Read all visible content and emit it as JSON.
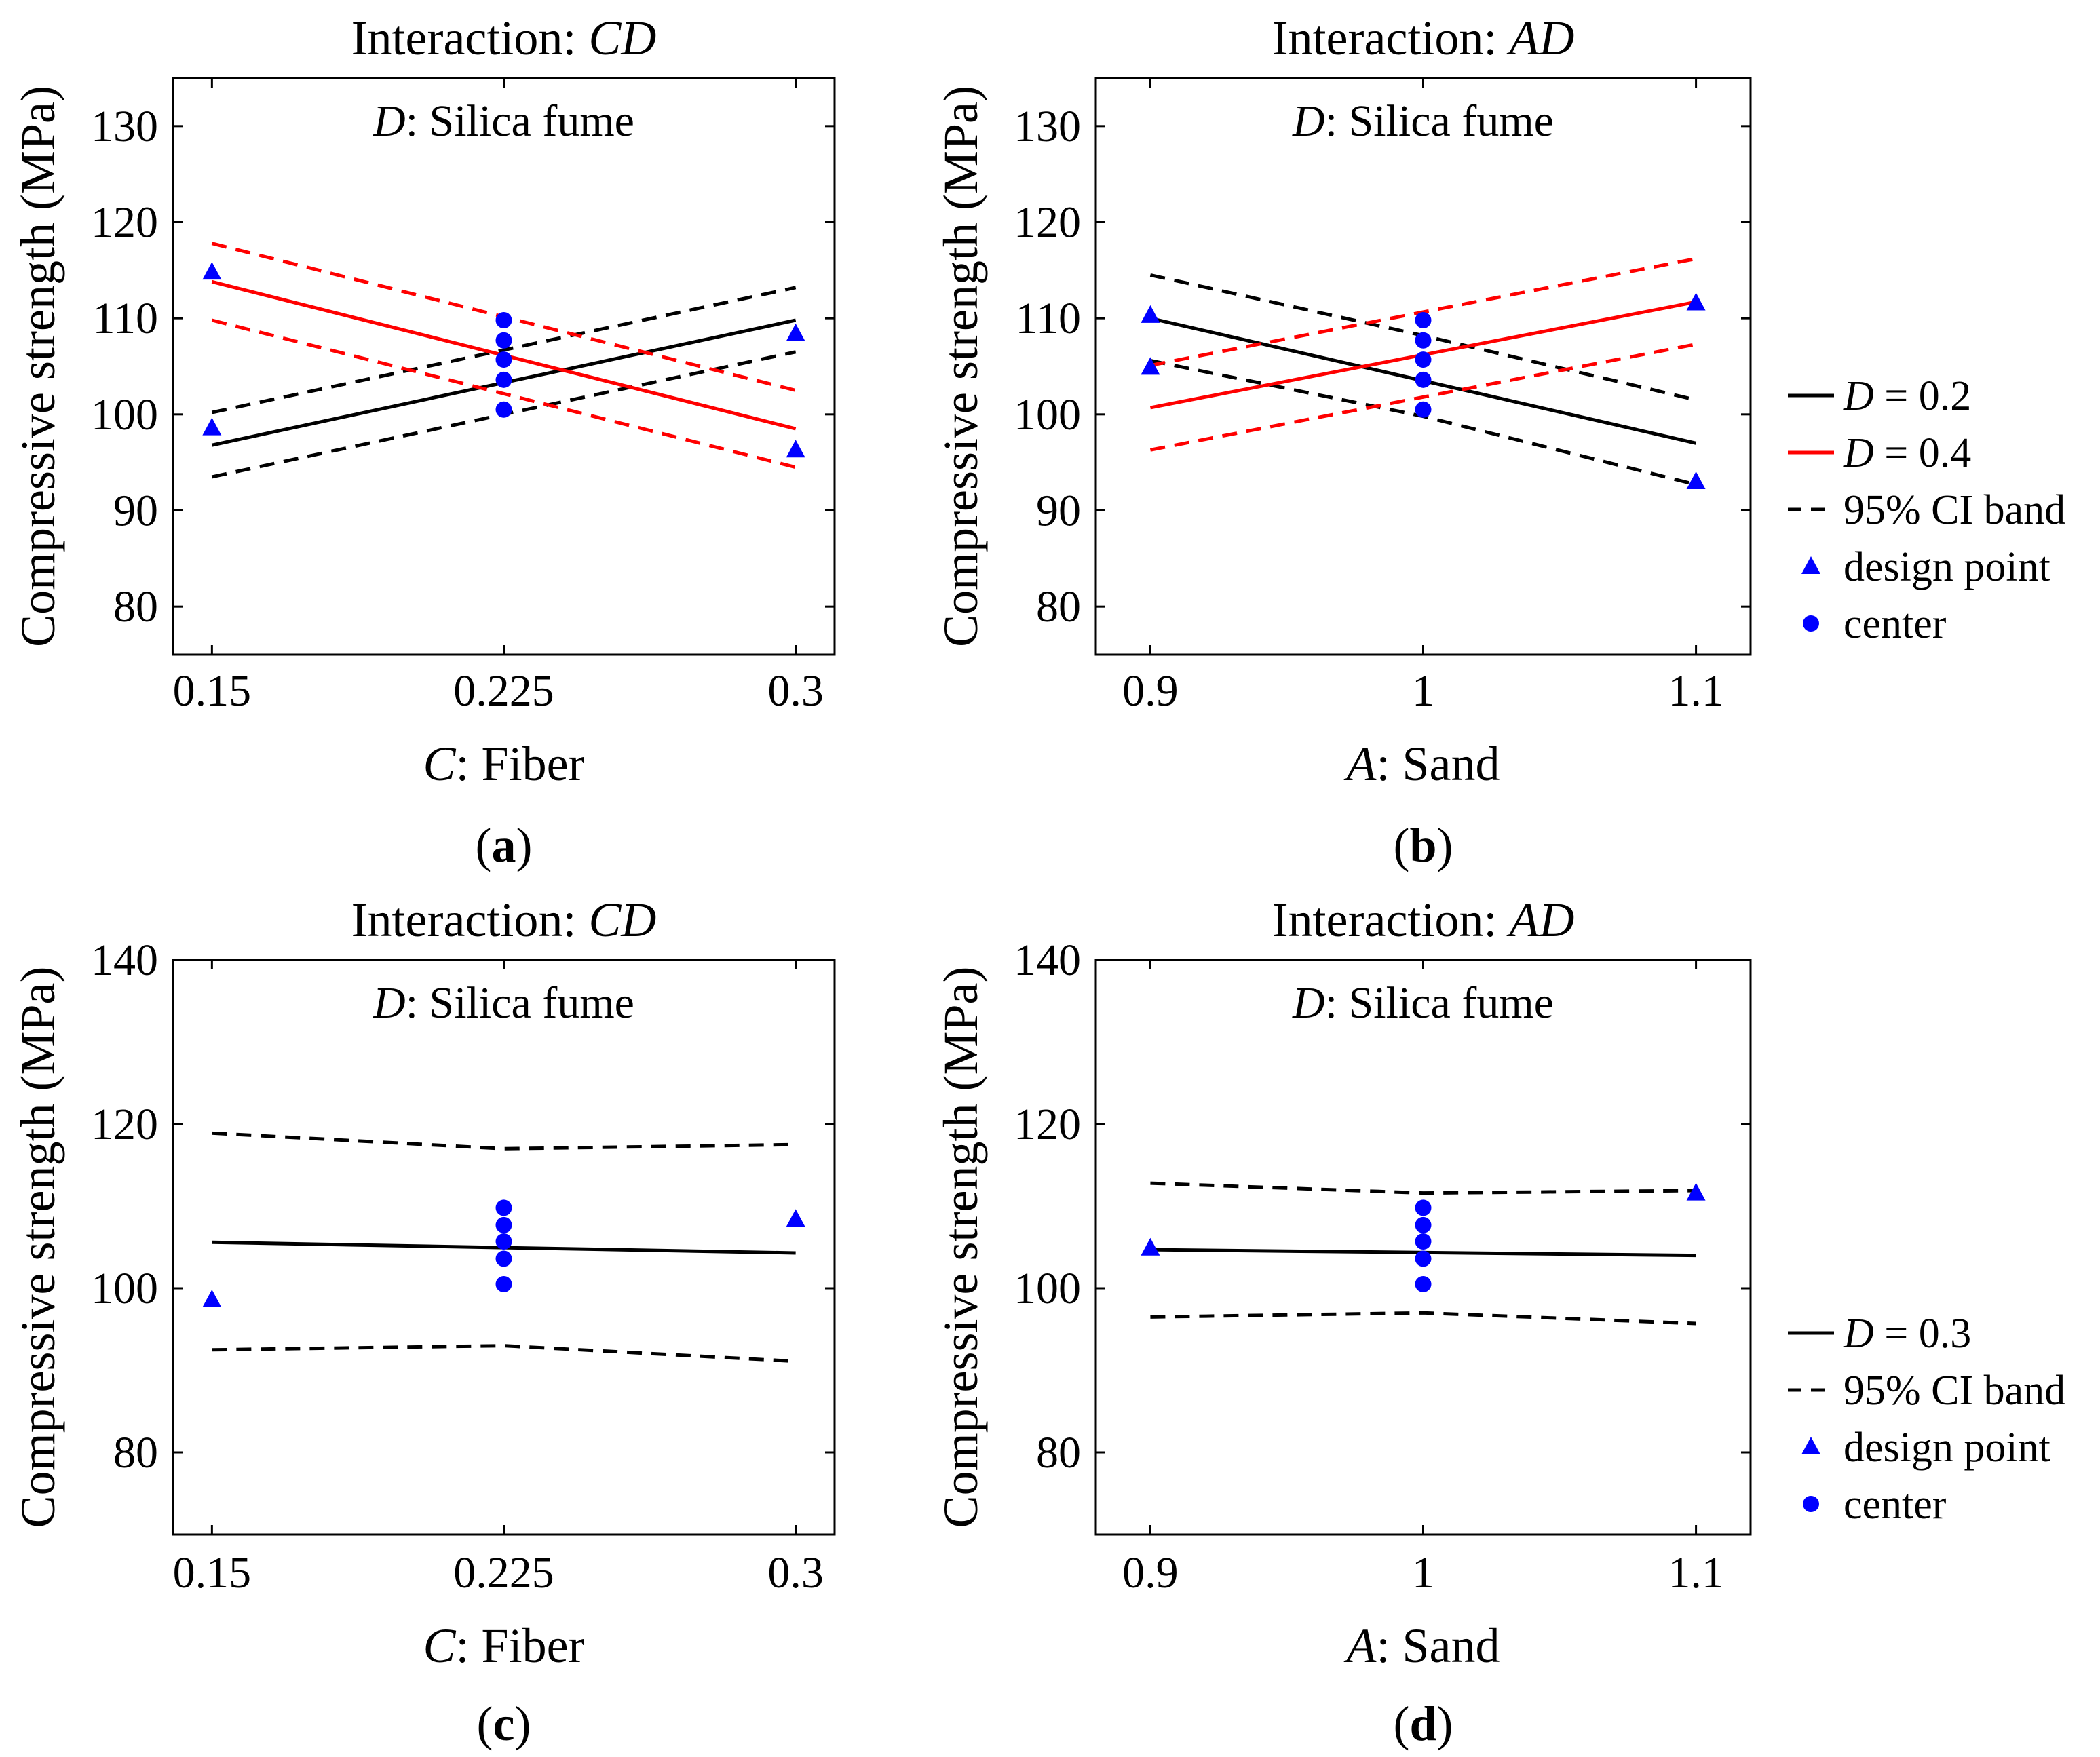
{
  "chart_data": [
    {
      "type": "line",
      "panel_label": "(a)",
      "title": "Interaction: CD",
      "title_parts": {
        "prefix": "Interaction: ",
        "italic": "CD"
      },
      "xlabel_parts": {
        "italic": "C",
        "rest": ": Fiber"
      },
      "ylabel": "Compressive strength (MPa)",
      "annotation_parts": {
        "italic": "D",
        "rest": ": Silica fume"
      },
      "xlim": [
        0.14,
        0.31
      ],
      "ylim": [
        75,
        135
      ],
      "xticks": [
        0.15,
        0.225,
        0.3
      ],
      "xtick_labels": [
        "0.15",
        "0.225",
        "0.3"
      ],
      "yticks": [
        80,
        90,
        100,
        110,
        120,
        130
      ],
      "series": [
        {
          "name": "D = 0.2",
          "style": "solid",
          "color": "#000000",
          "x": [
            0.15,
            0.3
          ],
          "y": [
            96.8,
            109.8
          ]
        },
        {
          "name": "D = 0.2 upper CI",
          "style": "dashed",
          "color": "#000000",
          "x": [
            0.15,
            0.3
          ],
          "y": [
            100.2,
            113.2
          ]
        },
        {
          "name": "D = 0.2 lower CI",
          "style": "dashed",
          "color": "#000000",
          "x": [
            0.15,
            0.3
          ],
          "y": [
            93.5,
            106.5
          ]
        },
        {
          "name": "D = 0.4",
          "style": "solid",
          "color": "#ff0000",
          "x": [
            0.15,
            0.3
          ],
          "y": [
            113.8,
            98.5
          ]
        },
        {
          "name": "D = 0.4 upper CI",
          "style": "dashed",
          "color": "#ff0000",
          "x": [
            0.15,
            0.3
          ],
          "y": [
            117.8,
            102.5
          ]
        },
        {
          "name": "D = 0.4 lower CI",
          "style": "dashed",
          "color": "#ff0000",
          "x": [
            0.15,
            0.3
          ],
          "y": [
            109.8,
            94.5
          ]
        }
      ],
      "design_points": {
        "x": [
          0.15,
          0.15,
          0.3,
          0.3
        ],
        "y": [
          114.8,
          98.6,
          108.4,
          96.3
        ]
      },
      "center_points": {
        "x": [
          0.225,
          0.225,
          0.225,
          0.225,
          0.225
        ],
        "y": [
          109.8,
          107.7,
          105.7,
          103.6,
          100.5
        ]
      }
    },
    {
      "type": "line",
      "panel_label": "(b)",
      "title": "Interaction: AD",
      "title_parts": {
        "prefix": "Interaction: ",
        "italic": "AD"
      },
      "xlabel_parts": {
        "italic": "A",
        "rest": ": Sand"
      },
      "ylabel": "Compressive strength (MPa)",
      "annotation_parts": {
        "italic": "D",
        "rest": ": Silica fume"
      },
      "xlim": [
        0.88,
        1.12
      ],
      "ylim": [
        75,
        135
      ],
      "xticks": [
        0.9,
        1.0,
        1.1
      ],
      "xtick_labels": [
        "0.9",
        "1",
        "1.1"
      ],
      "yticks": [
        80,
        90,
        100,
        110,
        120,
        130
      ],
      "series": [
        {
          "name": "D = 0.2",
          "style": "solid",
          "color": "#000000",
          "x": [
            0.9,
            1.1
          ],
          "y": [
            110.0,
            97.0
          ]
        },
        {
          "name": "D = 0.2 upper CI",
          "style": "dashed",
          "color": "#000000",
          "x": [
            0.9,
            1.0,
            1.1
          ],
          "y": [
            114.5,
            108.2,
            101.5
          ]
        },
        {
          "name": "D = 0.2 lower CI",
          "style": "dashed",
          "color": "#000000",
          "x": [
            0.9,
            1.0,
            1.1
          ],
          "y": [
            105.6,
            99.8,
            92.7
          ]
        },
        {
          "name": "D = 0.4",
          "style": "solid",
          "color": "#ff0000",
          "x": [
            0.9,
            1.1
          ],
          "y": [
            100.7,
            111.7
          ]
        },
        {
          "name": "D = 0.4 upper CI",
          "style": "dashed",
          "color": "#ff0000",
          "x": [
            0.9,
            1.1
          ],
          "y": [
            105.1,
            116.2
          ]
        },
        {
          "name": "D = 0.4 lower CI",
          "style": "dashed",
          "color": "#ff0000",
          "x": [
            0.9,
            1.1
          ],
          "y": [
            96.3,
            107.3
          ]
        }
      ],
      "design_points": {
        "x": [
          0.9,
          0.9,
          1.1,
          1.1
        ],
        "y": [
          110.3,
          104.9,
          111.6,
          93.0
        ]
      },
      "center_points": {
        "x": [
          1.0,
          1.0,
          1.0,
          1.0,
          1.0
        ],
        "y": [
          109.8,
          107.7,
          105.7,
          103.6,
          100.5
        ]
      }
    },
    {
      "type": "line",
      "panel_label": "(c)",
      "title": "Interaction: CD",
      "title_parts": {
        "prefix": "Interaction: ",
        "italic": "CD"
      },
      "xlabel_parts": {
        "italic": "C",
        "rest": ": Fiber"
      },
      "ylabel": "Compressive strength (MPa)",
      "annotation_parts": {
        "italic": "D",
        "rest": ": Silica fume"
      },
      "xlim": [
        0.14,
        0.31
      ],
      "ylim": [
        70,
        140
      ],
      "xticks": [
        0.15,
        0.225,
        0.3
      ],
      "xtick_labels": [
        "0.15",
        "0.225",
        "0.3"
      ],
      "yticks": [
        80,
        100,
        120,
        140
      ],
      "series": [
        {
          "name": "D = 0.3",
          "style": "solid",
          "color": "#000000",
          "x": [
            0.15,
            0.3
          ],
          "y": [
            105.6,
            104.3
          ]
        },
        {
          "name": "upper CI",
          "style": "dashed",
          "color": "#000000",
          "x": [
            0.15,
            0.225,
            0.3
          ],
          "y": [
            118.9,
            117.0,
            117.5
          ]
        },
        {
          "name": "lower CI",
          "style": "dashed",
          "color": "#000000",
          "x": [
            0.15,
            0.225,
            0.3
          ],
          "y": [
            92.5,
            93.0,
            91.1
          ]
        }
      ],
      "design_points": {
        "x": [
          0.15,
          0.3
        ],
        "y": [
          98.6,
          108.4
        ]
      },
      "center_points": {
        "x": [
          0.225,
          0.225,
          0.225,
          0.225,
          0.225
        ],
        "y": [
          109.8,
          107.7,
          105.7,
          103.6,
          100.5
        ]
      }
    },
    {
      "type": "line",
      "panel_label": "(d)",
      "title": "Interaction: AD",
      "title_parts": {
        "prefix": "Interaction: ",
        "italic": "AD"
      },
      "xlabel_parts": {
        "italic": "A",
        "rest": ": Sand"
      },
      "ylabel": "Compressive strength (MPa)",
      "annotation_parts": {
        "italic": "D",
        "rest": ": Silica fume"
      },
      "xlim": [
        0.88,
        1.12
      ],
      "ylim": [
        70,
        140
      ],
      "xticks": [
        0.9,
        1.0,
        1.1
      ],
      "xtick_labels": [
        "0.9",
        "1",
        "1.1"
      ],
      "yticks": [
        80,
        100,
        120,
        140
      ],
      "series": [
        {
          "name": "D = 0.3",
          "style": "solid",
          "color": "#000000",
          "x": [
            0.9,
            1.1
          ],
          "y": [
            104.7,
            104.0
          ]
        },
        {
          "name": "upper CI",
          "style": "dashed",
          "color": "#000000",
          "x": [
            0.9,
            1.0,
            1.1
          ],
          "y": [
            112.8,
            111.6,
            111.9
          ]
        },
        {
          "name": "lower CI",
          "style": "dashed",
          "color": "#000000",
          "x": [
            0.9,
            1.0,
            1.1
          ],
          "y": [
            96.5,
            97.0,
            95.7
          ]
        }
      ],
      "design_points": {
        "x": [
          0.9,
          1.1
        ],
        "y": [
          104.9,
          111.6
        ]
      },
      "center_points": {
        "x": [
          1.0,
          1.0,
          1.0,
          1.0,
          1.0
        ],
        "y": [
          109.8,
          107.7,
          105.7,
          103.6,
          100.5
        ]
      }
    }
  ],
  "legends": [
    {
      "entries": [
        {
          "kind": "line",
          "dash": "solid",
          "color": "#000000",
          "italic": "D",
          "rest": " = 0.2"
        },
        {
          "kind": "line",
          "dash": "solid",
          "color": "#ff0000",
          "italic": "D",
          "rest": " = 0.4"
        },
        {
          "kind": "line",
          "dash": "dashed",
          "color": "#000000",
          "italic": "",
          "rest": "95% CI band"
        },
        {
          "kind": "triangle",
          "color": "#0000ff",
          "italic": "",
          "rest": "design point"
        },
        {
          "kind": "circle",
          "color": "#0000ff",
          "italic": "",
          "rest": "center"
        }
      ]
    },
    {
      "entries": [
        {
          "kind": "line",
          "dash": "solid",
          "color": "#000000",
          "italic": "D",
          "rest": " = 0.3"
        },
        {
          "kind": "line",
          "dash": "dashed",
          "color": "#000000",
          "italic": "",
          "rest": "95% CI band"
        },
        {
          "kind": "triangle",
          "color": "#0000ff",
          "italic": "",
          "rest": "design point"
        },
        {
          "kind": "circle",
          "color": "#0000ff",
          "italic": "",
          "rest": "center"
        }
      ]
    }
  ],
  "colors": {
    "marker": "#0000ff",
    "black": "#000000",
    "red": "#ff0000",
    "ylabel": "#333333"
  }
}
